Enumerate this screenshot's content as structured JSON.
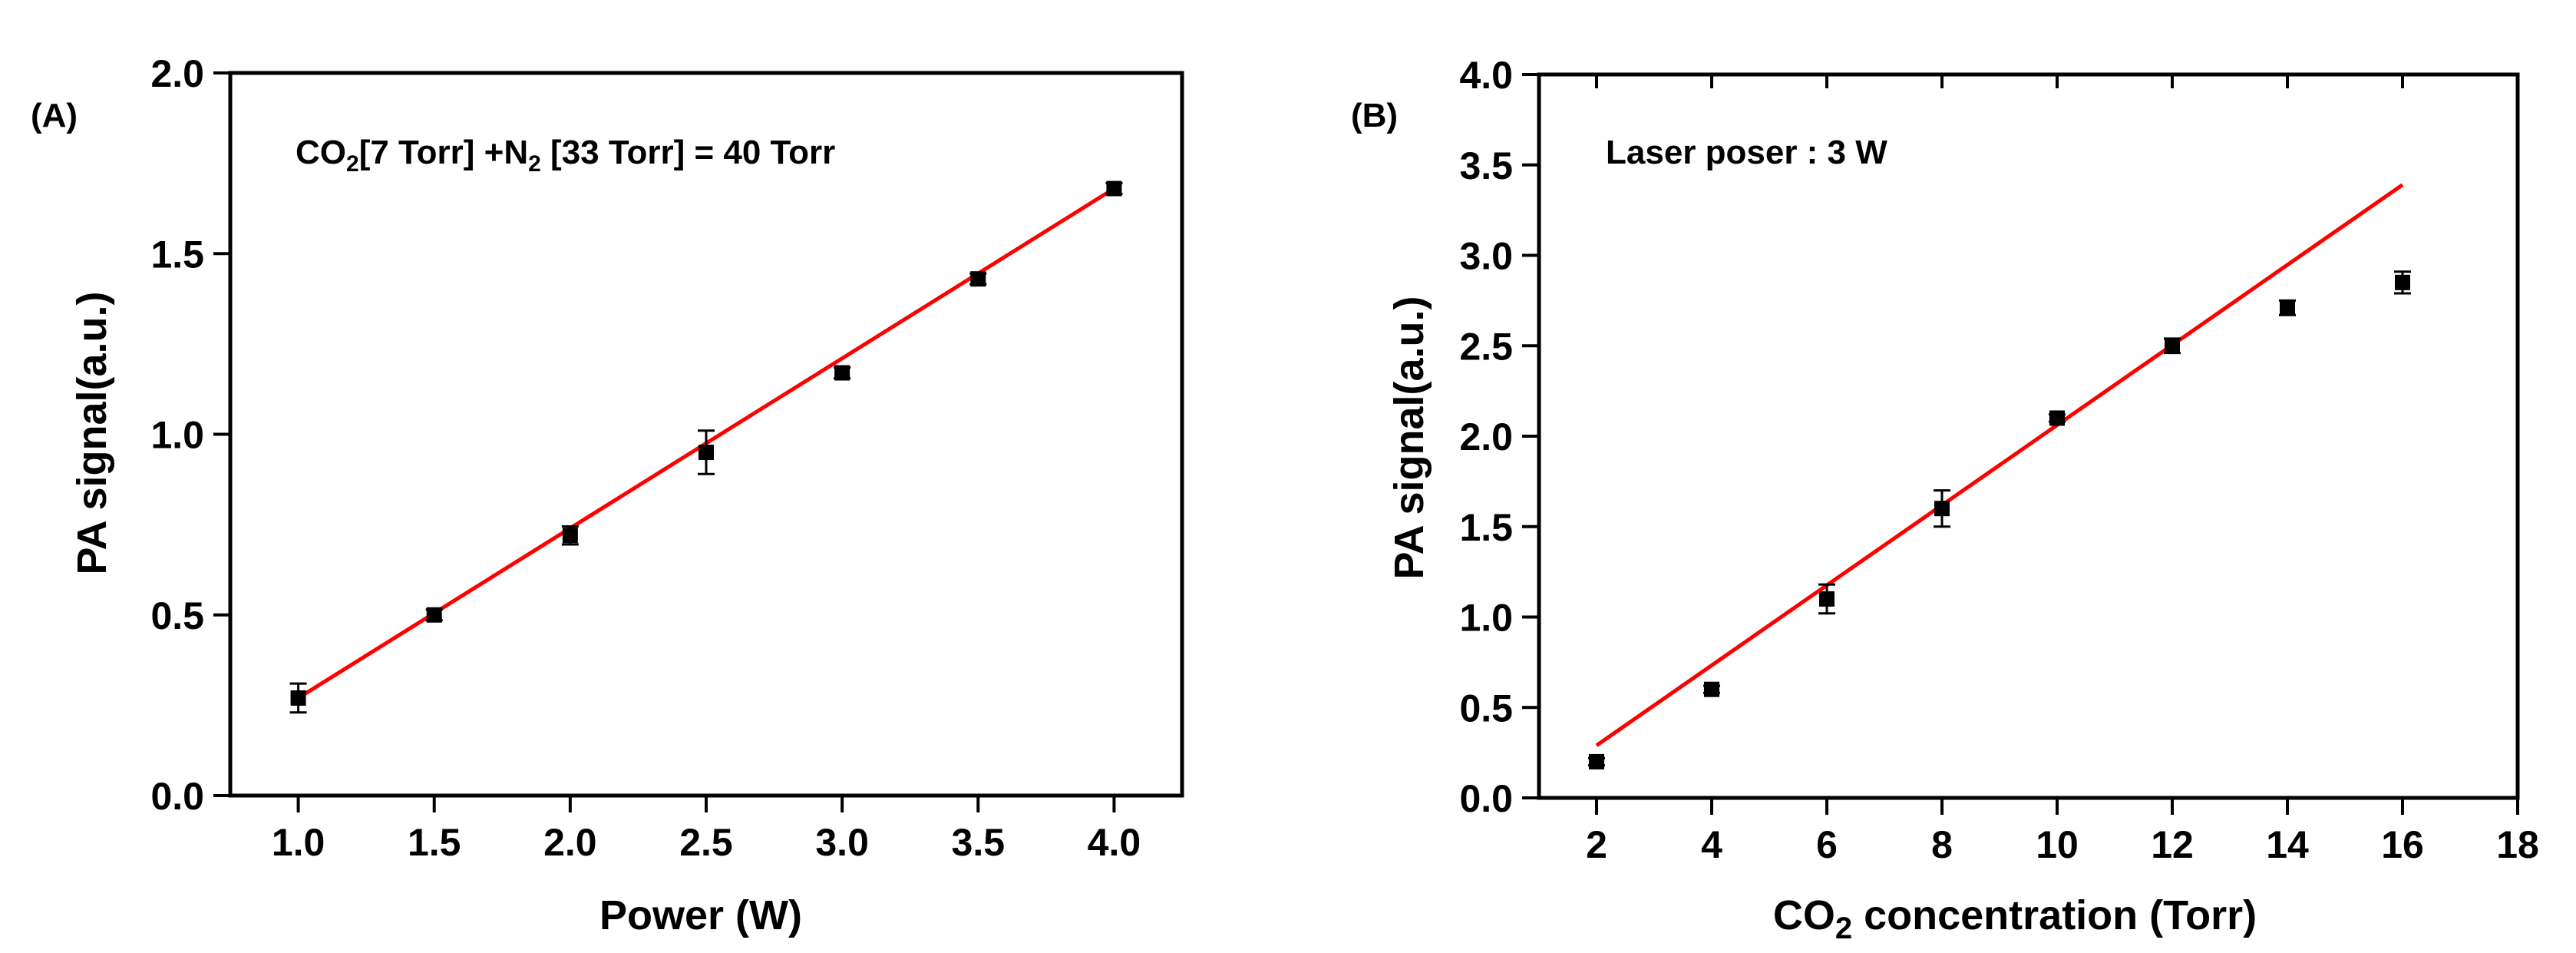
{
  "chart_data": [
    {
      "type": "scatter",
      "panel_label": "(A)",
      "annotation": {
        "prefix": "CO",
        "sub1": "2",
        "middle": "[7 Torr]  +N",
        "sub2": "2",
        "suffix": " [33 Torr] = 40 Torr"
      },
      "xlabel": "Power (W)",
      "ylabel": "PA signal(a.u.)",
      "xlim": [
        0.75,
        4.25
      ],
      "ylim": [
        0.0,
        2.0
      ],
      "xticks": [
        1.0,
        1.5,
        2.0,
        2.5,
        3.0,
        3.5,
        4.0
      ],
      "xtick_labels": [
        "1.0",
        "1.5",
        "2.0",
        "2.5",
        "3.0",
        "3.5",
        "4.0"
      ],
      "yticks": [
        0.0,
        0.5,
        1.0,
        1.5,
        2.0
      ],
      "ytick_labels": [
        "0.0",
        "0.5",
        "1.0",
        "1.5",
        "2.0"
      ],
      "points": [
        {
          "x": 1.0,
          "y": 0.27,
          "err": 0.04
        },
        {
          "x": 1.5,
          "y": 0.5,
          "err": 0.015
        },
        {
          "x": 2.0,
          "y": 0.72,
          "err": 0.025
        },
        {
          "x": 2.5,
          "y": 0.95,
          "err": 0.06
        },
        {
          "x": 3.0,
          "y": 1.17,
          "err": 0.015
        },
        {
          "x": 3.5,
          "y": 1.43,
          "err": 0.015
        },
        {
          "x": 4.0,
          "y": 1.68,
          "err": 0.015
        }
      ],
      "fit_line": {
        "x": [
          1.0,
          4.0
        ],
        "y": [
          0.27,
          1.68
        ],
        "color": "#ff0000"
      },
      "marker_color": "#000000",
      "grid": false
    },
    {
      "type": "scatter",
      "panel_label": "(B)",
      "annotation": {
        "text": "Laser poser : 3 W"
      },
      "xlabel_prefix": "CO",
      "xlabel_sub": "2",
      "xlabel_suffix": " concentration (Torr)",
      "ylabel": "PA signal(a.u.)",
      "xlim": [
        1.0,
        18.0
      ],
      "ylim": [
        0.0,
        4.0
      ],
      "xticks": [
        2,
        4,
        6,
        8,
        10,
        12,
        14,
        16,
        18
      ],
      "xtick_labels": [
        "2",
        "4",
        "6",
        "8",
        "10",
        "12",
        "14",
        "16",
        "18"
      ],
      "yticks": [
        0.0,
        0.5,
        1.0,
        1.5,
        2.0,
        2.5,
        3.0,
        3.5,
        4.0
      ],
      "ytick_labels": [
        "0.0",
        "0.5",
        "1.0",
        "1.5",
        "2.0",
        "2.5",
        "3.0",
        "3.5",
        "4.0"
      ],
      "points": [
        {
          "x": 2,
          "y": 0.2,
          "err": 0.02
        },
        {
          "x": 4,
          "y": 0.6,
          "err": 0.02
        },
        {
          "x": 6,
          "y": 1.1,
          "err": 0.08
        },
        {
          "x": 8,
          "y": 1.6,
          "err": 0.1
        },
        {
          "x": 10,
          "y": 2.1,
          "err": 0.02
        },
        {
          "x": 12,
          "y": 2.5,
          "err": 0.04
        },
        {
          "x": 14,
          "y": 2.71,
          "err": 0.04
        },
        {
          "x": 16,
          "y": 2.85,
          "err": 0.06
        }
      ],
      "fit_line": {
        "x": [
          2,
          16
        ],
        "y": [
          0.29,
          3.39
        ],
        "color": "#ff0000"
      },
      "marker_color": "#000000",
      "grid": false
    }
  ]
}
